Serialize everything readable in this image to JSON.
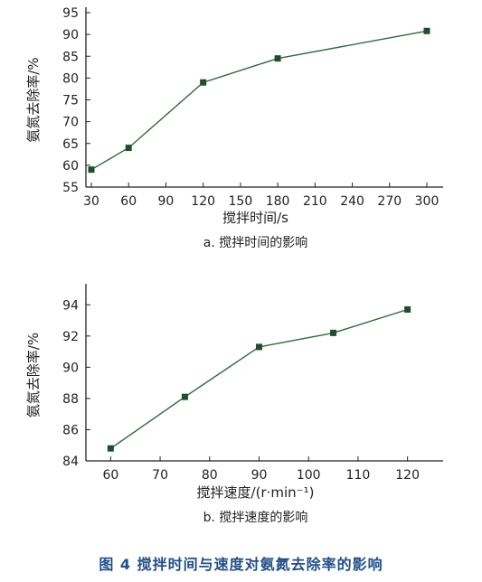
{
  "chart_data": [
    {
      "type": "line",
      "x": [
        30,
        60,
        120,
        180,
        300
      ],
      "series": [
        {
          "values": [
            59,
            64,
            79,
            84.5,
            90.8
          ]
        }
      ],
      "xlabel": "搅拌时间/s",
      "ylabel": "氨氮去除率/%",
      "xticks": [
        30,
        60,
        90,
        120,
        150,
        180,
        210,
        240,
        270,
        300
      ],
      "yticks": [
        55,
        60,
        65,
        70,
        75,
        80,
        85,
        90,
        95
      ],
      "xlim": [
        30,
        300
      ],
      "ylim": [
        55,
        95
      ],
      "caption": "a. 搅拌时间的影响",
      "grid": false,
      "line_color": "#2e6b3a"
    },
    {
      "type": "line",
      "x": [
        60,
        75,
        90,
        105,
        120
      ],
      "series": [
        {
          "values": [
            84.8,
            88.1,
            91.3,
            92.2,
            93.7
          ]
        }
      ],
      "xlabel": "搅拌速度/(r·min⁻¹)",
      "ylabel": "氨氮去除率/%",
      "xticks": [
        60,
        70,
        80,
        90,
        100,
        110,
        120
      ],
      "yticks": [
        84,
        86,
        88,
        90,
        92,
        94
      ],
      "xlim": [
        55,
        125
      ],
      "ylim": [
        84,
        95
      ],
      "caption": "b. 搅拌速度的影响",
      "grid": false,
      "line_color": "#2e6b3a"
    }
  ],
  "figure_caption": "图 4   搅拌时间与速度对氨氮去除率的影响"
}
